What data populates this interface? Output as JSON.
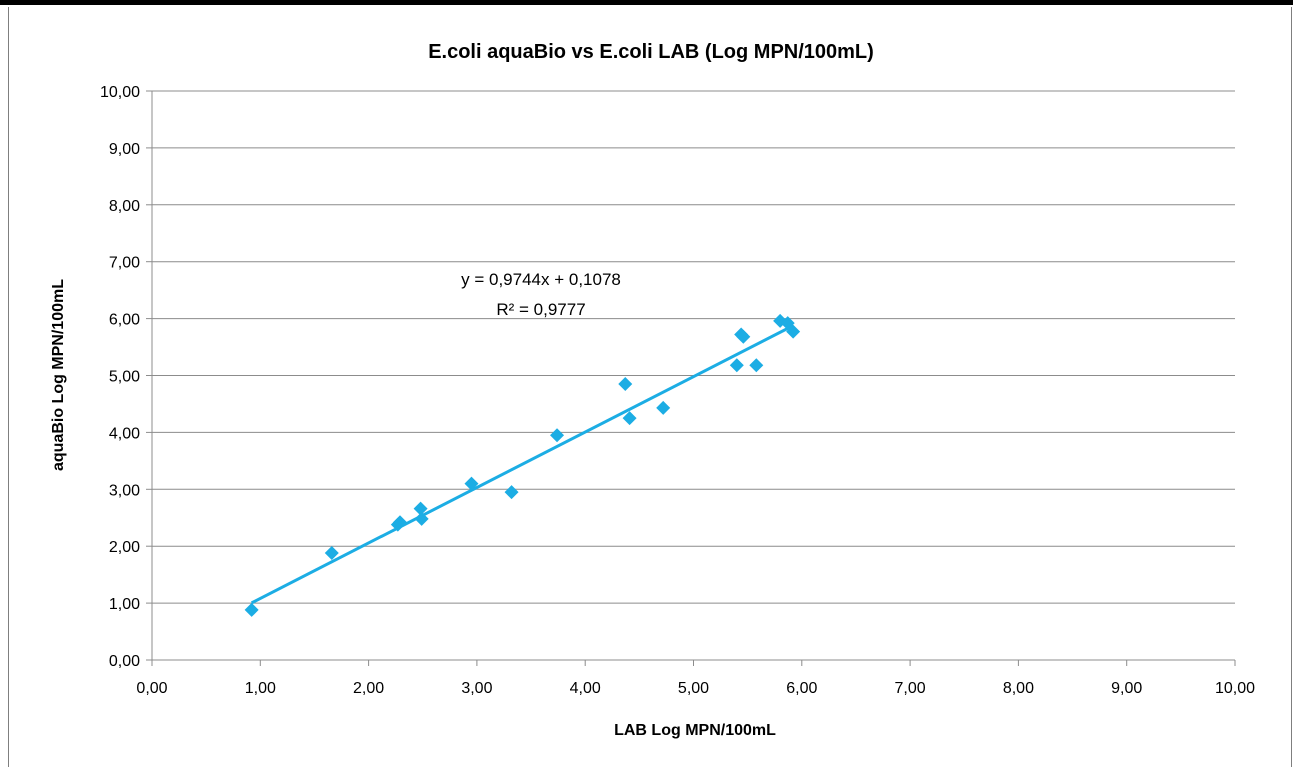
{
  "chart_data": {
    "type": "scatter",
    "title": "E.coli aquaBio vs E.coli LAB (Log MPN/100mL)",
    "xlabel": "LAB Log MPN/100mL",
    "ylabel": "aquaBio Log MPN/100mL",
    "xlim": [
      0,
      10
    ],
    "ylim": [
      0,
      10
    ],
    "x_ticks": [
      "0,00",
      "1,00",
      "2,00",
      "3,00",
      "4,00",
      "5,00",
      "6,00",
      "7,00",
      "8,00",
      "9,00",
      "10,00"
    ],
    "y_ticks": [
      "0,00",
      "1,00",
      "2,00",
      "3,00",
      "4,00",
      "5,00",
      "6,00",
      "7,00",
      "8,00",
      "9,00",
      "10,00"
    ],
    "grid": "horizontal",
    "legend": "none",
    "marker_color": "#1cade4",
    "series": [
      {
        "marker": "diamond",
        "points": [
          [
            0.92,
            0.88
          ],
          [
            1.66,
            1.88
          ],
          [
            2.27,
            2.38
          ],
          [
            2.29,
            2.42
          ],
          [
            2.48,
            2.66
          ],
          [
            2.49,
            2.48
          ],
          [
            2.95,
            3.1
          ],
          [
            3.32,
            2.95
          ],
          [
            3.74,
            3.95
          ],
          [
            4.37,
            4.85
          ],
          [
            4.41,
            4.25
          ],
          [
            4.72,
            4.43
          ],
          [
            5.4,
            5.18
          ],
          [
            5.44,
            5.72
          ],
          [
            5.46,
            5.68
          ],
          [
            5.58,
            5.18
          ],
          [
            5.8,
            5.96
          ],
          [
            5.87,
            5.92
          ],
          [
            5.92,
            5.77
          ]
        ]
      }
    ],
    "trendline": {
      "slope": 0.9744,
      "intercept": 0.1078,
      "x_range": [
        0.92,
        5.92
      ],
      "equation": "y = 0,9744x + 0,1078",
      "r_squared": "R² = 0,9777"
    }
  }
}
